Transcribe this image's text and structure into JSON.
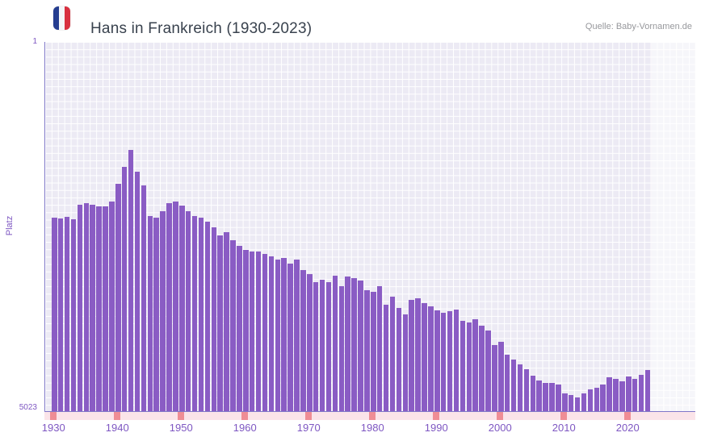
{
  "header": {
    "title": "Hans in Frankreich (1930-2023)",
    "source": "Quelle: Baby-Vornamen.de",
    "flag_icon": "french-flag-icon"
  },
  "axes": {
    "y_label": "Platz",
    "y_top": "1",
    "y_bottom": "5023",
    "x_tick_labels": [
      "1930",
      "1940",
      "1950",
      "1960",
      "1970",
      "1980",
      "1990",
      "2000",
      "2010",
      "2020"
    ]
  },
  "colors": {
    "bar": "#8a5cc4",
    "plot_background": "#eceaf4",
    "grid_line": "#ffffff",
    "axis_line": "#8077c8",
    "axis_text": "#7e57c2",
    "title_text": "#39424e",
    "source_text": "#97989c",
    "strip_background": "#fbe4e9",
    "strip_tick": "#ef8d95",
    "recent_band": "rgba(255,255,255,0.55)",
    "flag_blue": "#253d90",
    "flag_white": "#f5f6f8",
    "flag_red": "#d8303f"
  },
  "chart_data": {
    "type": "bar",
    "title": "Hans in Frankreich (1930-2023)",
    "xlabel": "",
    "ylabel": "Platz",
    "y_axis": {
      "top_value": 1,
      "bottom_value": 5023,
      "inverted": true,
      "note": "rank 1 is best; taller bar = better rank"
    },
    "legend": "none",
    "grid": true,
    "x_tick_labels": [
      "1930",
      "1940",
      "1950",
      "1960",
      "1970",
      "1980",
      "1990",
      "2000",
      "2010",
      "2020"
    ],
    "years": [
      1930,
      1931,
      1932,
      1933,
      1934,
      1935,
      1936,
      1937,
      1938,
      1939,
      1940,
      1941,
      1942,
      1943,
      1944,
      1945,
      1946,
      1947,
      1948,
      1949,
      1950,
      1951,
      1952,
      1953,
      1954,
      1955,
      1956,
      1957,
      1958,
      1959,
      1960,
      1961,
      1962,
      1963,
      1964,
      1965,
      1966,
      1967,
      1968,
      1969,
      1970,
      1971,
      1972,
      1973,
      1974,
      1975,
      1976,
      1977,
      1978,
      1979,
      1980,
      1981,
      1982,
      1983,
      1984,
      1985,
      1986,
      1987,
      1988,
      1989,
      1990,
      1991,
      1992,
      1993,
      1994,
      1995,
      1996,
      1997,
      1998,
      1999,
      2000,
      2001,
      2002,
      2003,
      2004,
      2005,
      2006,
      2007,
      2008,
      2009,
      2010,
      2011,
      2012,
      2013,
      2014,
      2015,
      2016,
      2017,
      2018,
      2019,
      2020,
      2021,
      2022,
      2023
    ],
    "ranks": [
      2390,
      2400,
      2380,
      2410,
      2215,
      2195,
      2215,
      2240,
      2240,
      2170,
      1930,
      1700,
      1470,
      1765,
      1950,
      2370,
      2390,
      2300,
      2195,
      2170,
      2225,
      2300,
      2370,
      2390,
      2445,
      2520,
      2630,
      2590,
      2700,
      2775,
      2830,
      2850,
      2850,
      2885,
      2920,
      2960,
      2940,
      3015,
      2960,
      3105,
      3160,
      3270,
      3235,
      3270,
      3180,
      3320,
      3190,
      3215,
      3245,
      3380,
      3400,
      3320,
      3575,
      3465,
      3620,
      3705,
      3510,
      3490,
      3555,
      3600,
      3650,
      3685,
      3660,
      3640,
      3795,
      3815,
      3770,
      3860,
      3925,
      4125,
      4080,
      4255,
      4320,
      4385,
      4450,
      4540,
      4605,
      4640,
      4640,
      4660,
      4780,
      4805,
      4835,
      4780,
      4725,
      4705,
      4660,
      4560,
      4585,
      4615,
      4550,
      4585,
      4530,
      4460
    ]
  }
}
